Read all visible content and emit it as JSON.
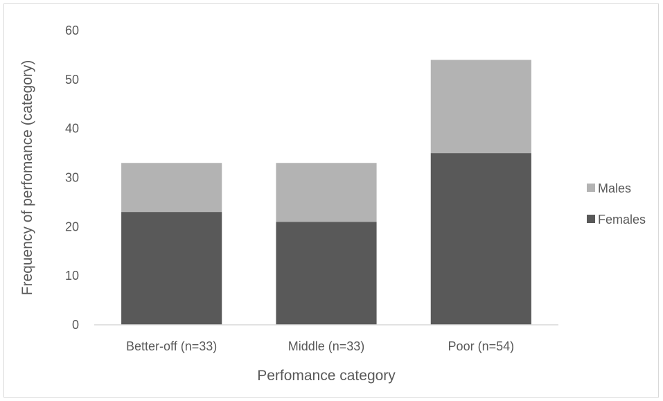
{
  "chart_data": {
    "type": "bar",
    "stacked": true,
    "title": "",
    "xlabel": "Perfomance category",
    "ylabel": "Frequency of perfomance (category)",
    "categories": [
      "Better-off (n=33)",
      "Middle (n=33)",
      "Poor (n=54)"
    ],
    "series": [
      {
        "name": "Females",
        "values": [
          23,
          21,
          35
        ],
        "color": "#595959"
      },
      {
        "name": "Males",
        "values": [
          10,
          12,
          19
        ],
        "color": "#b3b3b3"
      }
    ],
    "ylim": [
      0,
      60
    ],
    "yticks": [
      0,
      10,
      20,
      30,
      40,
      50,
      60
    ],
    "grid": false,
    "legend": {
      "position": "right",
      "order": [
        "Males",
        "Females"
      ]
    },
    "axis_line_color": "#d9d9d9",
    "text_color": "#595959"
  }
}
